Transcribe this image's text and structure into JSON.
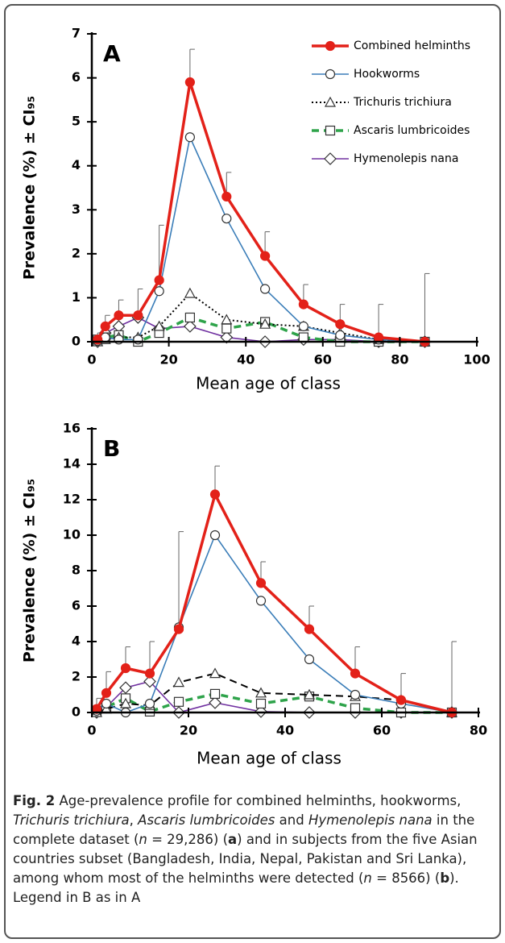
{
  "chart_data": [
    {
      "type": "line",
      "panel": "A",
      "x_label": "Mean age of class",
      "y_label": "Prevalence (%) ± CI₉₅",
      "x": [
        1.5,
        3.5,
        7,
        12,
        17.5,
        25.5,
        35,
        45,
        55,
        64.5,
        74.5,
        86.5
      ],
      "xlim": [
        0,
        100
      ],
      "xticks": [
        0,
        20,
        40,
        60,
        80,
        100
      ],
      "ylim": [
        0,
        7
      ],
      "yticks": [
        0,
        1,
        2,
        3,
        4,
        5,
        6,
        7
      ],
      "legend": "top-right",
      "series": [
        {
          "name": "Combined helminths",
          "color": "#e32119",
          "dash": "solid",
          "marker": "circle-filled",
          "values": [
            0.05,
            0.35,
            0.6,
            0.6,
            1.4,
            5.9,
            3.3,
            1.95,
            0.85,
            0.4,
            0.1,
            0
          ],
          "errors": [
            0.15,
            0.25,
            0.35,
            0.6,
            1.25,
            0.75,
            0.55,
            0.55,
            0.45,
            0.45,
            0.75,
            1.55
          ]
        },
        {
          "name": "Hookworms",
          "color": "#3a7db8",
          "dash": "solid",
          "marker": "circle",
          "values": [
            0.02,
            0.1,
            0.05,
            0.05,
            1.15,
            4.65,
            2.8,
            1.2,
            0.35,
            0.15,
            0.05,
            0
          ]
        },
        {
          "name": "Trichuris trichiura",
          "color": "#000000",
          "dash": "dotted",
          "marker": "triangle",
          "values": [
            0,
            0.05,
            0.1,
            0.1,
            0.35,
            1.1,
            0.5,
            0.4,
            0.35,
            0.2,
            0.05,
            0
          ]
        },
        {
          "name": "Ascaris lumbricoides",
          "color": "#2ea34a",
          "dash": "dashed",
          "marker": "square",
          "values": [
            0.05,
            0.1,
            0.15,
            0,
            0.2,
            0.55,
            0.3,
            0.45,
            0.1,
            0,
            0,
            0
          ]
        },
        {
          "name": "Hymenolepis nana",
          "color": "#7030a0",
          "dash": "solid",
          "marker": "diamond",
          "values": [
            0,
            0.2,
            0.35,
            0.55,
            0.3,
            0.35,
            0.1,
            0,
            0.05,
            0.05,
            0,
            0
          ]
        }
      ]
    },
    {
      "type": "line",
      "panel": "B",
      "x_label": "Mean age of class",
      "y_label": "Prevalence (%) ± CI₉₅",
      "x": [
        1,
        3,
        7,
        12,
        18,
        25.5,
        35,
        45,
        54.5,
        64,
        74.5
      ],
      "xlim": [
        0,
        80
      ],
      "xticks": [
        0,
        20,
        40,
        60,
        80
      ],
      "ylim": [
        0,
        16
      ],
      "yticks": [
        0,
        2,
        4,
        6,
        8,
        10,
        12,
        14,
        16
      ],
      "series": [
        {
          "color": "#e32119",
          "dash": "solid",
          "marker": "circle-filled",
          "values": [
            0.2,
            1.1,
            2.5,
            2.2,
            4.7,
            12.3,
            7.3,
            4.7,
            2.2,
            0.7,
            0
          ],
          "errors": [
            0.6,
            1.2,
            1.2,
            1.8,
            5.5,
            1.6,
            1.2,
            1.3,
            1.5,
            1.5,
            4
          ]
        },
        {
          "color": "#3a7db8",
          "dash": "solid",
          "marker": "circle",
          "values": [
            0.1,
            0.5,
            0,
            0.5,
            4.8,
            10,
            6.3,
            3,
            1,
            0.5,
            0
          ]
        },
        {
          "color": "#000000",
          "dash": "dashed",
          "marker": "triangle",
          "values": [
            0,
            0.2,
            0.5,
            0.4,
            1.7,
            2.2,
            1.1,
            1,
            0.9,
            0.7,
            0
          ]
        },
        {
          "color": "#2ea34a",
          "dash": "dashed",
          "marker": "square",
          "values": [
            0.1,
            0.3,
            0.8,
            0.05,
            0.6,
            1.05,
            0.5,
            0.9,
            0.25,
            0,
            0
          ]
        },
        {
          "color": "#7030a0",
          "dash": "solid",
          "marker": "diamond",
          "values": [
            0,
            0.3,
            1.4,
            1.75,
            0,
            0.55,
            0.05,
            0,
            0,
            0,
            0
          ]
        }
      ]
    }
  ],
  "caption": [
    "Fig. 2",
    " Age-prevalence profile for combined helminths, hookworms, ",
    "Trichuris trichiura",
    ", ",
    "Ascaris lumbricoides",
    " and ",
    "Hymenolepis nana",
    " in the complete dataset (",
    "n",
    " = 29,286) (",
    "a",
    ") and in subjects from the five Asian countries subset (Bangladesh, India, Nepal, Pakistan and Sri Lanka), among whom most of the helminths were detected (",
    "n",
    " = 8566) (",
    "b",
    "). Legend in B as in A"
  ]
}
